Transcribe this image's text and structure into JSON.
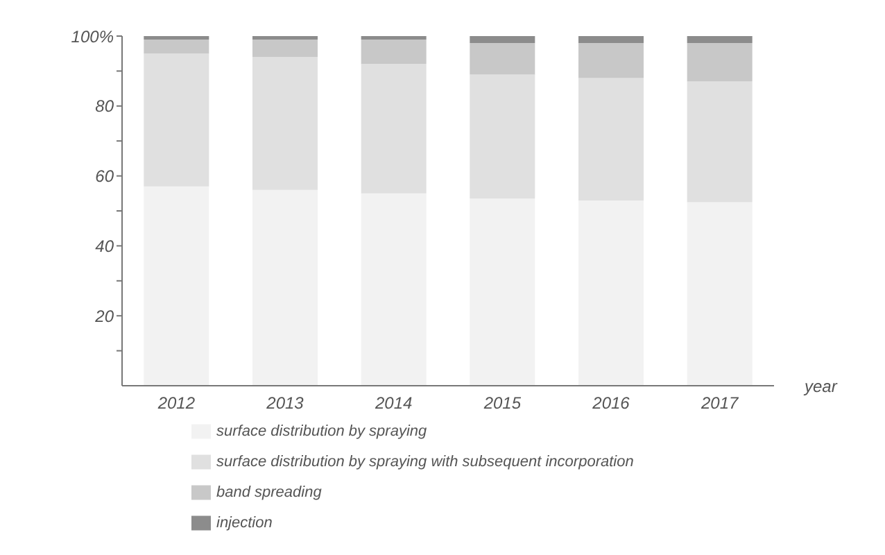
{
  "chart_data": {
    "type": "bar",
    "stacked": true,
    "xlabel": "year",
    "categories": [
      "2012",
      "2013",
      "2014",
      "2015",
      "2016",
      "2017"
    ],
    "series": [
      {
        "name": "surface distribution by spraying",
        "color": "#f2f2f2",
        "values": [
          57,
          56,
          55,
          53.5,
          53,
          52.5
        ]
      },
      {
        "name": "surface distribution by spraying with subsequent incorporation",
        "color": "#e0e0e0",
        "values": [
          38,
          38,
          37,
          35.5,
          35,
          34.5
        ]
      },
      {
        "name": "band spreading",
        "color": "#c8c8c8",
        "values": [
          4,
          5,
          7,
          9,
          10,
          11
        ]
      },
      {
        "name": "injection",
        "color": "#8c8c8c",
        "values": [
          1,
          1,
          1,
          2,
          2,
          2
        ]
      }
    ],
    "ylim": [
      0,
      100
    ],
    "yticks": [
      {
        "value": 10,
        "label": null
      },
      {
        "value": 20,
        "label": "20"
      },
      {
        "value": 30,
        "label": null
      },
      {
        "value": 40,
        "label": "40"
      },
      {
        "value": 50,
        "label": null
      },
      {
        "value": 60,
        "label": "60"
      },
      {
        "value": 70,
        "label": null
      },
      {
        "value": 80,
        "label": "80"
      },
      {
        "value": 90,
        "label": null
      },
      {
        "value": 100,
        "label": "100%"
      }
    ],
    "grid": false,
    "legend": "bottom"
  }
}
